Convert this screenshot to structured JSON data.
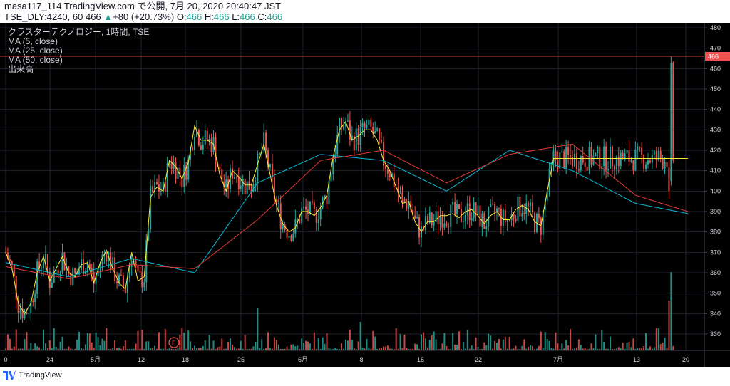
{
  "header": {
    "line1": "masa117_114 TradingView.com で公開, 7月 20, 2020 20:40:47 JST",
    "symbol": "TSE_DLY:4240, 60",
    "price": "466",
    "change": "+80 (+20.73%)",
    "o_label": "O:",
    "o": "466",
    "h_label": "H:",
    "h": "466",
    "l_label": "L:",
    "l": "466",
    "c_label": "C:",
    "c": "466"
  },
  "legend": {
    "title": "クラスターテクノロジー, 1時間, TSE",
    "ma5": "MA (5, close)",
    "ma25": "MA (25, close)",
    "ma50": "MA (50, close)",
    "volume": "出来高"
  },
  "footer": {
    "brand": "TradingView"
  },
  "colors": {
    "up": "#26a69a",
    "down": "#ef5350",
    "ma5": "#ffeb3b",
    "ma25": "#00bcd4",
    "ma50": "#e53935",
    "grid": "#1e222d",
    "price_line": "#ef5350"
  },
  "chart_data": {
    "type": "candlestick",
    "y_axis": {
      "ticks": [
        480,
        470,
        460,
        450,
        440,
        430,
        420,
        410,
        400,
        390,
        380,
        370,
        360,
        350,
        340,
        330
      ],
      "min": 322,
      "max": 482
    },
    "current_price": 466,
    "x_axis": {
      "labels": [
        "0",
        "24",
        "5月",
        "12",
        "18",
        "25",
        "6月",
        "8",
        "15",
        "22",
        "7月",
        "13",
        "20"
      ]
    },
    "earnings_marker": "E",
    "series": [
      {
        "name": "MA (5, close)",
        "x": [
          0,
          3,
          6,
          9,
          12,
          15,
          18,
          21,
          24,
          27,
          30,
          33,
          36,
          39,
          42,
          45,
          48,
          51,
          54,
          57,
          60,
          63,
          66,
          69,
          72,
          75,
          78,
          81,
          84,
          87,
          90,
          93,
          96,
          99,
          102,
          105,
          108,
          111,
          114,
          117,
          120,
          123,
          126,
          129,
          132,
          135,
          138,
          141,
          144,
          147,
          150,
          153,
          156,
          159,
          162,
          165,
          168,
          171,
          174,
          177,
          180,
          183,
          186,
          189,
          192,
          195,
          198,
          201,
          204,
          207,
          210,
          213,
          216,
          219,
          222,
          225,
          228,
          231,
          234,
          237,
          240,
          243,
          246,
          249,
          252,
          255,
          258,
          261,
          264,
          267,
          270,
          273,
          276,
          279,
          282,
          285,
          288,
          291,
          294,
          297,
          300,
          303,
          306,
          309,
          312,
          315,
          318,
          321,
          324,
          325
        ],
        "values": [
          370,
          362,
          345,
          340,
          345,
          360,
          368,
          356,
          362,
          368,
          360,
          358,
          364,
          365,
          355,
          365,
          371,
          362,
          355,
          352,
          370,
          356,
          358,
          397,
          402,
          400,
          415,
          412,
          406,
          414,
          432,
          425,
          425,
          423,
          408,
          400,
          410,
          407,
          403,
          403,
          413,
          423,
          408,
          393,
          384,
          380,
          382,
          390,
          390,
          388,
          392,
          398,
          417,
          430,
          434,
          425,
          427,
          430,
          430,
          425,
          415,
          410,
          402,
          394,
          395,
          385,
          380,
          385,
          385,
          388,
          388,
          389,
          387,
          390,
          391,
          388,
          384,
          388,
          390,
          386,
          386,
          391,
          393,
          391,
          385,
          383,
          400,
          416,
          416,
          416,
          416,
          416,
          416,
          416,
          416,
          416,
          416,
          416,
          416,
          416,
          416,
          416,
          416,
          416,
          416,
          416,
          416,
          416,
          416,
          416
        ]
      },
      {
        "name": "MA (25, close)",
        "x": [
          0,
          30,
          60,
          90,
          120,
          150,
          180,
          210,
          240,
          270,
          300,
          325
        ],
        "values": [
          365,
          358,
          367,
          360,
          404,
          418,
          415,
          400,
          420,
          410,
          394,
          389
        ]
      },
      {
        "name": "MA (50, close)",
        "x": [
          0,
          30,
          60,
          90,
          120,
          150,
          180,
          210,
          240,
          270,
          300,
          325
        ],
        "values": [
          363,
          357,
          364,
          362,
          386,
          415,
          420,
          404,
          418,
          423,
          398,
          390
        ]
      }
    ]
  }
}
